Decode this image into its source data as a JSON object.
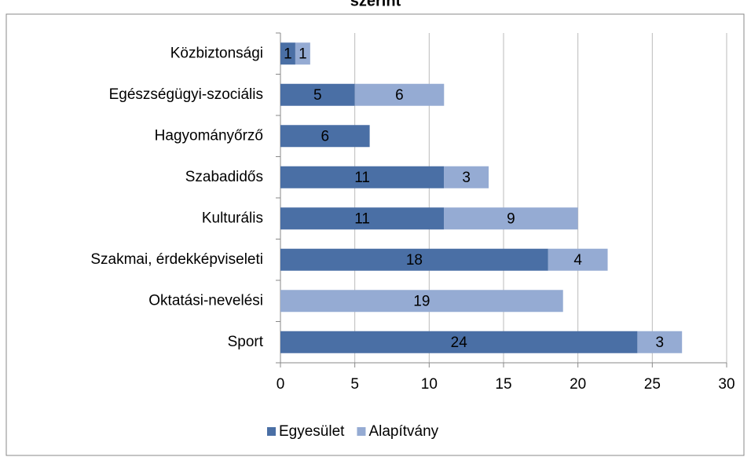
{
  "chart_data": {
    "type": "bar",
    "orientation": "horizontal",
    "stacked": true,
    "title": "szerint",
    "categories": [
      "Közbiztonsági",
      "Egészségügyi-szociális",
      "Hagyományőrző",
      "Szabadidős",
      "Kulturális",
      "Szakmai, érdekképviseleti",
      "Oktatási-nevelési",
      "Sport"
    ],
    "series": [
      {
        "name": "Egyesület",
        "color": "#4a6fa5",
        "values": [
          1,
          5,
          6,
          11,
          11,
          18,
          null,
          24
        ]
      },
      {
        "name": "Alapítvány",
        "color": "#95abd3",
        "values": [
          1,
          6,
          null,
          3,
          9,
          4,
          19,
          3
        ]
      }
    ],
    "xlim": [
      0,
      30
    ],
    "xticks": [
      0,
      5,
      10,
      15,
      20,
      25,
      30
    ],
    "grid": true,
    "legend": "bottom"
  }
}
